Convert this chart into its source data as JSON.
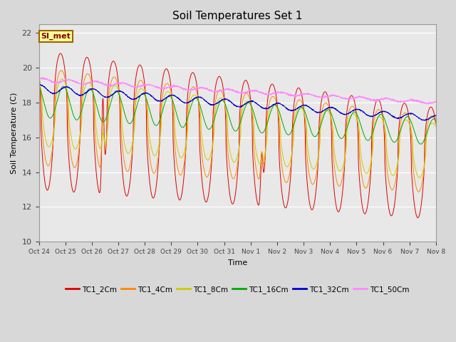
{
  "title": "Soil Temperatures Set 1",
  "xlabel": "Time",
  "ylabel": "Soil Temperature (C)",
  "ylim": [
    10,
    22.5
  ],
  "yticks": [
    10,
    12,
    14,
    16,
    18,
    20,
    22
  ],
  "bg_color": "#d8d8d8",
  "plot_bg_color": "#e8e8e8",
  "annotation_text": "SI_met",
  "annotation_bg": "#ffff99",
  "annotation_edge": "#996600",
  "annotation_text_color": "#880000",
  "colors": {
    "TC1_2Cm": "#dd0000",
    "TC1_4Cm": "#ff8800",
    "TC1_8Cm": "#cccc00",
    "TC1_16Cm": "#00aa00",
    "TC1_32Cm": "#0000cc",
    "TC1_50Cm": "#ff88ff"
  },
  "legend_labels": [
    "TC1_2Cm",
    "TC1_4Cm",
    "TC1_8Cm",
    "TC1_16Cm",
    "TC1_32Cm",
    "TC1_50Cm"
  ],
  "tick_labels": [
    "Oct 24",
    "Oct 25",
    "Oct 26",
    "Oct 27",
    "Oct 28",
    "Oct 29",
    "Oct 30",
    "Oct 31",
    "Nov 1",
    "Nov 2",
    "Nov 3",
    "Nov 4",
    "Nov 5",
    "Nov 6",
    "Nov 7",
    "Nov 8"
  ],
  "num_days": 15,
  "points_per_day": 144
}
